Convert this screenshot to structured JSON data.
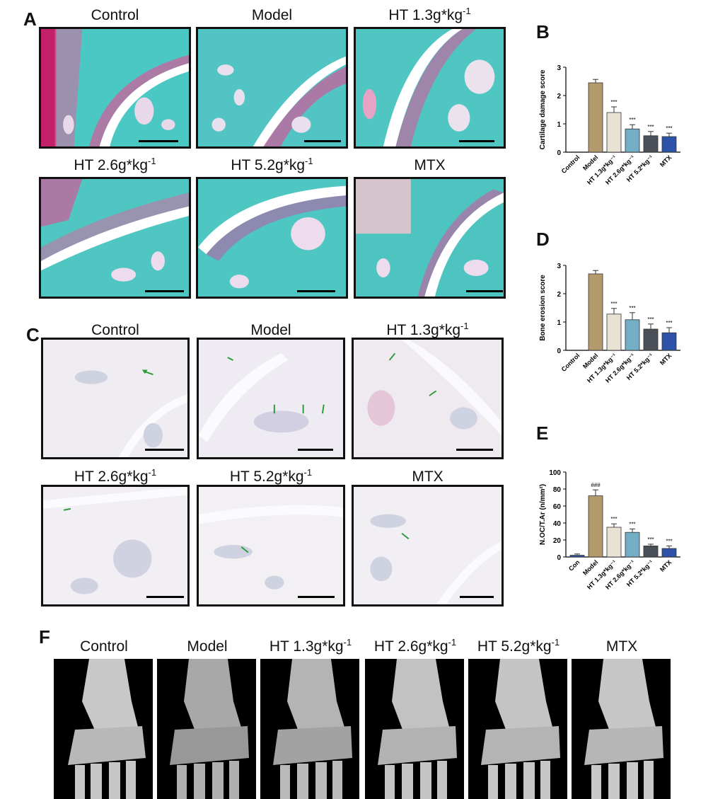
{
  "panel_labels": {
    "a": "A",
    "b": "B",
    "c": "C",
    "d": "D",
    "e": "E",
    "f": "F"
  },
  "groups": [
    {
      "label": "Control",
      "sup": ""
    },
    {
      "label": "Model",
      "sup": ""
    },
    {
      "label": "HT 1.3g*kg",
      "sup": "-1"
    },
    {
      "label": "HT 2.6g*kg",
      "sup": "-1"
    },
    {
      "label": "HT 5.2g*kg",
      "sup": "-1"
    },
    {
      "label": "MTX",
      "sup": ""
    }
  ],
  "chart_data": [
    {
      "type": "bar",
      "panel": "B",
      "ylabel": "Cartilage damage score",
      "ylim": [
        0,
        3
      ],
      "yticks": [
        0,
        1,
        2,
        3
      ],
      "categories": [
        "Control",
        "Model",
        "HT 1.3g*kg⁻¹",
        "HT 2.6g*kg⁻¹",
        "HT 5.2*kg⁻¹",
        "MTX"
      ],
      "values": [
        0,
        2.45,
        1.4,
        0.82,
        0.58,
        0.55
      ],
      "errors": [
        0,
        0.12,
        0.2,
        0.15,
        0.15,
        0.12
      ],
      "annotations": [
        "",
        "",
        "***",
        "***",
        "***",
        "***"
      ],
      "colors": [
        "#ffffff",
        "#b29a6c",
        "#e8e2d4",
        "#73aec4",
        "#4a4f58",
        "#2c53a7"
      ]
    },
    {
      "type": "bar",
      "panel": "D",
      "ylabel": "Bone erosion score",
      "ylim": [
        0,
        3
      ],
      "yticks": [
        0,
        1,
        2,
        3
      ],
      "categories": [
        "Control",
        "Model",
        "HT 1.3g*kg⁻¹",
        "HT 2.6g*kg⁻¹",
        "HT 5.2*kg⁻¹",
        "MTX"
      ],
      "values": [
        0,
        2.7,
        1.28,
        1.08,
        0.75,
        0.62
      ],
      "errors": [
        0,
        0.12,
        0.2,
        0.25,
        0.18,
        0.18
      ],
      "annotations": [
        "",
        "",
        "***",
        "***",
        "***",
        "***"
      ],
      "colors": [
        "#ffffff",
        "#b29a6c",
        "#e8e2d4",
        "#73aec4",
        "#4a4f58",
        "#2c53a7"
      ]
    },
    {
      "type": "bar",
      "panel": "E",
      "ylabel": "N.OC/T.Ar (n/mm²)",
      "ylim": [
        0,
        100
      ],
      "yticks": [
        0,
        20,
        40,
        60,
        80,
        100
      ],
      "categories": [
        "Con",
        "Model",
        "HT 1.3g*kg⁻¹",
        "HT 2.6g*kg⁻¹",
        "HT 5.2*kg⁻¹",
        "MTX"
      ],
      "values": [
        2,
        72,
        35,
        29,
        13,
        10
      ],
      "errors": [
        1.5,
        7,
        4,
        4,
        2,
        3
      ],
      "annotations": [
        "",
        "###",
        "***",
        "***",
        "***",
        "***"
      ],
      "colors": [
        "#2c53a7",
        "#b29a6c",
        "#e8e2d4",
        "#73aec4",
        "#4a4f58",
        "#2c53a7"
      ]
    }
  ]
}
